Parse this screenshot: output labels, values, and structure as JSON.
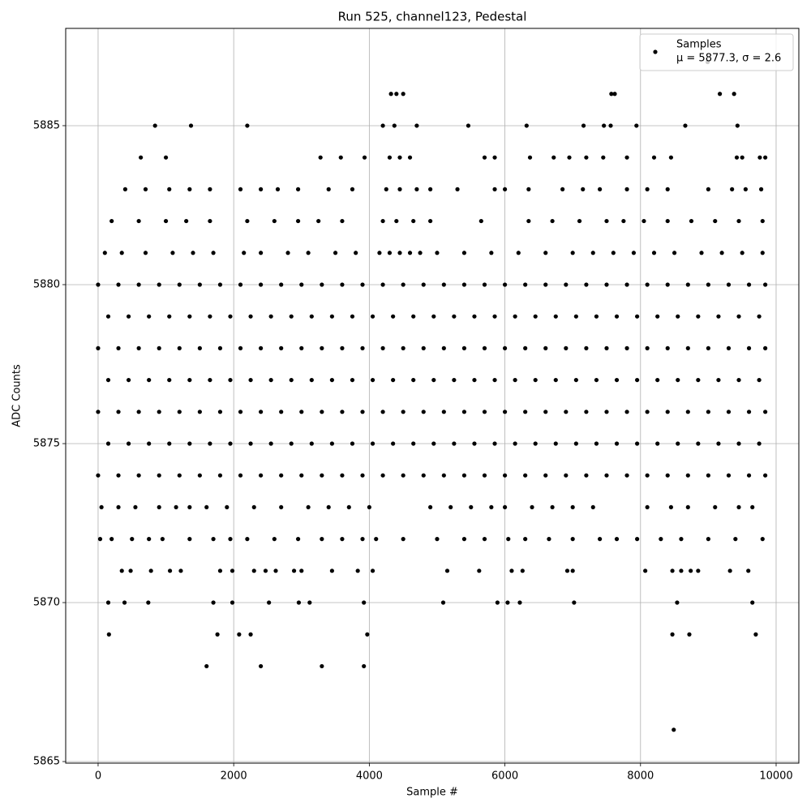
{
  "chart_data": {
    "type": "scatter",
    "title": "Run 525, channel123, Pedestal",
    "xlabel": "Sample #",
    "ylabel": "ADC Counts",
    "xlim": [
      -478,
      10335
    ],
    "ylim": [
      5864.95,
      5888.06
    ],
    "xticks": [
      0,
      2000,
      4000,
      6000,
      8000,
      10000
    ],
    "yticks": [
      5865,
      5870,
      5875,
      5880,
      5885
    ],
    "grid": true,
    "legend": "upper right",
    "legend_stats": "μ = 5877.3, σ = 2.6",
    "series": [
      {
        "name": "Samples",
        "color": "#000000",
        "x": [
          0,
          300,
          600,
          900,
          1200,
          1500,
          1800,
          2100,
          2400,
          2700,
          3000,
          3300,
          3600,
          3900,
          4200,
          4500,
          4800,
          5100,
          5400,
          5700,
          6000,
          6300,
          6600,
          6900,
          7200,
          7500,
          7800,
          8100,
          8400,
          8700,
          9000,
          9300,
          9600,
          9840,
          150,
          450,
          750,
          1050,
          1350,
          1650,
          1950,
          2250,
          2550,
          2850,
          3150,
          3450,
          3750,
          4050,
          4350,
          4650,
          4950,
          5250,
          5550,
          5850,
          6150,
          6450,
          6750,
          7050,
          7350,
          7650,
          7950,
          8250,
          8550,
          8850,
          9150,
          9450,
          9750,
          0,
          300,
          600,
          900,
          1200,
          1500,
          1800,
          2100,
          2400,
          2700,
          3000,
          3300,
          3600,
          3900,
          4200,
          4500,
          4800,
          5100,
          5400,
          5700,
          6000,
          6300,
          6600,
          6900,
          7200,
          7500,
          7800,
          8100,
          8400,
          8700,
          9000,
          9300,
          9600,
          9840,
          150,
          450,
          750,
          1050,
          1350,
          1650,
          1950,
          2250,
          2550,
          2850,
          3150,
          3450,
          3750,
          4050,
          4350,
          4650,
          4950,
          5250,
          5550,
          5850,
          6150,
          6450,
          6750,
          7050,
          7350,
          7650,
          7950,
          8250,
          8550,
          8850,
          9150,
          9450,
          9750,
          0,
          300,
          600,
          900,
          1200,
          1500,
          1800,
          2100,
          2400,
          2700,
          3000,
          3300,
          3600,
          3900,
          4200,
          4500,
          4800,
          5100,
          5400,
          5700,
          6000,
          6300,
          6600,
          6900,
          7200,
          7500,
          7800,
          8100,
          8400,
          8700,
          9000,
          9300,
          9600,
          9840,
          150,
          450,
          750,
          1050,
          1350,
          1650,
          1950,
          2250,
          2550,
          2850,
          3150,
          3450,
          3750,
          4050,
          4350,
          4650,
          4950,
          5250,
          5550,
          5850,
          6150,
          6450,
          6750,
          7050,
          7350,
          7650,
          7950,
          8250,
          8550,
          8850,
          9150,
          9450,
          9750,
          0,
          300,
          600,
          900,
          1200,
          1500,
          1800,
          2100,
          2400,
          2700,
          3000,
          3300,
          3600,
          3900,
          4200,
          4500,
          4800,
          5100,
          5400,
          5700,
          6000,
          6300,
          6600,
          6900,
          7200,
          7500,
          7800,
          8100,
          8400,
          8700,
          9000,
          9300,
          9600,
          9840,
          100,
          350,
          700,
          1100,
          1400,
          1700,
          2150,
          2400,
          2800,
          3100,
          3500,
          3800,
          4150,
          4300,
          4450,
          4600,
          4750,
          5000,
          5400,
          5800,
          6200,
          6600,
          7000,
          7300,
          7600,
          7900,
          8200,
          8500,
          8900,
          9200,
          9500,
          9800,
          200,
          600,
          1000,
          1300,
          1650,
          2200,
          2600,
          2950,
          3250,
          3600,
          4200,
          4400,
          4650,
          4900,
          5650,
          6350,
          6700,
          7100,
          7500,
          7750,
          8050,
          8400,
          8750,
          9100,
          9450,
          9800,
          400,
          700,
          1050,
          1350,
          1650,
          2100,
          2400,
          2650,
          2950,
          3400,
          3750,
          4250,
          4450,
          4700,
          4900,
          5300,
          5850,
          6000,
          6350,
          6850,
          7150,
          7400,
          7800,
          8100,
          8400,
          9000,
          9350,
          9550,
          9780,
          630,
          1000,
          3280,
          3580,
          3930,
          4300,
          4450,
          4600,
          5700,
          5850,
          6370,
          6720,
          6950,
          7200,
          7450,
          7800,
          8200,
          8450,
          9420,
          9500,
          9760,
          9840,
          50,
          300,
          550,
          900,
          1150,
          1350,
          1600,
          1900,
          2300,
          2700,
          3100,
          3400,
          3700,
          4000,
          4900,
          5200,
          5500,
          5800,
          6000,
          6400,
          6700,
          7000,
          7300,
          8100,
          8450,
          8700,
          9100,
          9450,
          9650,
          30,
          200,
          500,
          750,
          950,
          1350,
          1700,
          1950,
          2200,
          2600,
          2950,
          3300,
          3600,
          3900,
          4100,
          4500,
          5000,
          5400,
          5700,
          6050,
          6300,
          6650,
          7000,
          7400,
          7650,
          7950,
          8300,
          8600,
          9000,
          9400,
          9800,
          350,
          480,
          780,
          1060,
          1220,
          1800,
          1980,
          2300,
          2470,
          2620,
          2890,
          3000,
          3450,
          3830,
          4050,
          5150,
          5620,
          6100,
          6260,
          6920,
          7000,
          8070,
          8470,
          8600,
          8740,
          8850,
          9320,
          9590,
          840,
          1370,
          2200,
          4200,
          4370,
          4700,
          5460,
          6320,
          7160,
          7460,
          7560,
          7940,
          8660,
          9430,
          4320,
          4400,
          4500,
          7570,
          7620,
          9170,
          9380,
          8990,
          150,
          390,
          740,
          1700,
          1980,
          2520,
          2960,
          3120,
          3920,
          5090,
          5890,
          6040,
          6220,
          7020,
          8540,
          9650,
          160,
          1760,
          2080,
          2250,
          3970,
          8470,
          8720,
          9700,
          1600,
          2400,
          3300,
          3920,
          8490
        ],
        "values": [
          5880,
          5880,
          5880,
          5880,
          5880,
          5880,
          5880,
          5880,
          5880,
          5880,
          5880,
          5880,
          5880,
          5880,
          5880,
          5880,
          5880,
          5880,
          5880,
          5880,
          5880,
          5880,
          5880,
          5880,
          5880,
          5880,
          5880,
          5880,
          5880,
          5880,
          5880,
          5880,
          5880,
          5880,
          5879,
          5879,
          5879,
          5879,
          5879,
          5879,
          5879,
          5879,
          5879,
          5879,
          5879,
          5879,
          5879,
          5879,
          5879,
          5879,
          5879,
          5879,
          5879,
          5879,
          5879,
          5879,
          5879,
          5879,
          5879,
          5879,
          5879,
          5879,
          5879,
          5879,
          5879,
          5879,
          5879,
          5878,
          5878,
          5878,
          5878,
          5878,
          5878,
          5878,
          5878,
          5878,
          5878,
          5878,
          5878,
          5878,
          5878,
          5878,
          5878,
          5878,
          5878,
          5878,
          5878,
          5878,
          5878,
          5878,
          5878,
          5878,
          5878,
          5878,
          5878,
          5878,
          5878,
          5878,
          5878,
          5878,
          5878,
          5877,
          5877,
          5877,
          5877,
          5877,
          5877,
          5877,
          5877,
          5877,
          5877,
          5877,
          5877,
          5877,
          5877,
          5877,
          5877,
          5877,
          5877,
          5877,
          5877,
          5877,
          5877,
          5877,
          5877,
          5877,
          5877,
          5877,
          5877,
          5877,
          5877,
          5877,
          5877,
          5877,
          5876,
          5876,
          5876,
          5876,
          5876,
          5876,
          5876,
          5876,
          5876,
          5876,
          5876,
          5876,
          5876,
          5876,
          5876,
          5876,
          5876,
          5876,
          5876,
          5876,
          5876,
          5876,
          5876,
          5876,
          5876,
          5876,
          5876,
          5876,
          5876,
          5876,
          5876,
          5876,
          5876,
          5876,
          5875,
          5875,
          5875,
          5875,
          5875,
          5875,
          5875,
          5875,
          5875,
          5875,
          5875,
          5875,
          5875,
          5875,
          5875,
          5875,
          5875,
          5875,
          5875,
          5875,
          5875,
          5875,
          5875,
          5875,
          5875,
          5875,
          5875,
          5875,
          5875,
          5875,
          5875,
          5875,
          5875,
          5874,
          5874,
          5874,
          5874,
          5874,
          5874,
          5874,
          5874,
          5874,
          5874,
          5874,
          5874,
          5874,
          5874,
          5874,
          5874,
          5874,
          5874,
          5874,
          5874,
          5874,
          5874,
          5874,
          5874,
          5874,
          5874,
          5874,
          5874,
          5874,
          5874,
          5874,
          5874,
          5874,
          5874,
          5881,
          5881,
          5881,
          5881,
          5881,
          5881,
          5881,
          5881,
          5881,
          5881,
          5881,
          5881,
          5881,
          5881,
          5881,
          5881,
          5881,
          5881,
          5881,
          5881,
          5881,
          5881,
          5881,
          5881,
          5881,
          5881,
          5881,
          5881,
          5881,
          5881,
          5881,
          5881,
          5882,
          5882,
          5882,
          5882,
          5882,
          5882,
          5882,
          5882,
          5882,
          5882,
          5882,
          5882,
          5882,
          5882,
          5882,
          5882,
          5882,
          5882,
          5882,
          5882,
          5882,
          5882,
          5882,
          5882,
          5882,
          5882,
          5883,
          5883,
          5883,
          5883,
          5883,
          5883,
          5883,
          5883,
          5883,
          5883,
          5883,
          5883,
          5883,
          5883,
          5883,
          5883,
          5883,
          5883,
          5883,
          5883,
          5883,
          5883,
          5883,
          5883,
          5883,
          5883,
          5883,
          5883,
          5883,
          5884,
          5884,
          5884,
          5884,
          5884,
          5884,
          5884,
          5884,
          5884,
          5884,
          5884,
          5884,
          5884,
          5884,
          5884,
          5884,
          5884,
          5884,
          5884,
          5884,
          5884,
          5884,
          5873,
          5873,
          5873,
          5873,
          5873,
          5873,
          5873,
          5873,
          5873,
          5873,
          5873,
          5873,
          5873,
          5873,
          5873,
          5873,
          5873,
          5873,
          5873,
          5873,
          5873,
          5873,
          5873,
          5873,
          5873,
          5873,
          5873,
          5873,
          5873,
          5872,
          5872,
          5872,
          5872,
          5872,
          5872,
          5872,
          5872,
          5872,
          5872,
          5872,
          5872,
          5872,
          5872,
          5872,
          5872,
          5872,
          5872,
          5872,
          5872,
          5872,
          5872,
          5872,
          5872,
          5872,
          5872,
          5872,
          5872,
          5872,
          5872,
          5872,
          5871,
          5871,
          5871,
          5871,
          5871,
          5871,
          5871,
          5871,
          5871,
          5871,
          5871,
          5871,
          5871,
          5871,
          5871,
          5871,
          5871,
          5871,
          5871,
          5871,
          5871,
          5871,
          5871,
          5871,
          5871,
          5871,
          5871,
          5871,
          5885,
          5885,
          5885,
          5885,
          5885,
          5885,
          5885,
          5885,
          5885,
          5885,
          5885,
          5885,
          5885,
          5885,
          5886,
          5886,
          5886,
          5886,
          5886,
          5886,
          5886,
          5887,
          5870,
          5870,
          5870,
          5870,
          5870,
          5870,
          5870,
          5870,
          5870,
          5870,
          5870,
          5870,
          5870,
          5870,
          5870,
          5870,
          5869,
          5869,
          5869,
          5869,
          5869,
          5869,
          5869,
          5869,
          5868,
          5868,
          5868,
          5868,
          5866
        ]
      }
    ]
  }
}
